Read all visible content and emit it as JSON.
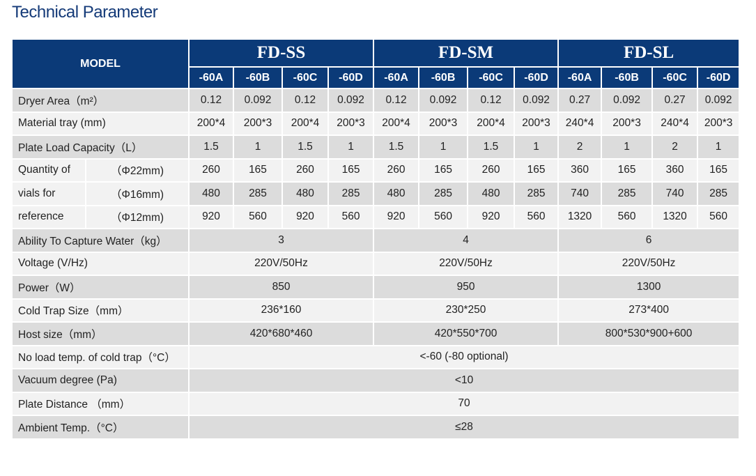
{
  "title": "Technical Parameter",
  "header": {
    "model_label": "MODEL",
    "groups": [
      "FD-SS",
      "FD-SM",
      "FD-SL"
    ],
    "variants": [
      "-60A",
      "-60B",
      "-60C",
      "-60D",
      "-60A",
      "-60B",
      "-60C",
      "-60D",
      "-60A",
      "-60B",
      "-60C",
      "-60D"
    ]
  },
  "rows": {
    "dryer_area": {
      "label": "Dryer Area（m²）",
      "values": [
        "0.12",
        "0.092",
        "0.12",
        "0.092",
        "0.12",
        "0.092",
        "0.12",
        "0.092",
        "0.27",
        "0.092",
        "0.27",
        "0.092"
      ]
    },
    "material_tray": {
      "label": "Material tray (mm)",
      "values": [
        "200*4",
        "200*3",
        "200*4",
        "200*3",
        "200*4",
        "200*3",
        "200*4",
        "200*3",
        "240*4",
        "200*3",
        "240*4",
        "200*3"
      ]
    },
    "plate_load": {
      "label": "Plate Load Capacity（L）",
      "values": [
        "1.5",
        "1",
        "1.5",
        "1",
        "1.5",
        "1",
        "1.5",
        "1",
        "2",
        "1",
        "2",
        "1"
      ]
    },
    "vials": {
      "label_lines": [
        "Quantity of",
        "vials for",
        "reference"
      ],
      "sizes": [
        {
          "label": "（Φ22mm)",
          "values": [
            "260",
            "165",
            "260",
            "165",
            "260",
            "165",
            "260",
            "165",
            "360",
            "165",
            "360",
            "165"
          ]
        },
        {
          "label": "（Φ16mm)",
          "values": [
            "480",
            "285",
            "480",
            "285",
            "480",
            "285",
            "480",
            "285",
            "740",
            "285",
            "740",
            "285"
          ]
        },
        {
          "label": "（Φ12mm)",
          "values": [
            "920",
            "560",
            "920",
            "560",
            "920",
            "560",
            "920",
            "560",
            "1320",
            "560",
            "1320",
            "560"
          ]
        }
      ]
    },
    "capture_water": {
      "label": "Ability To Capture Water（kg）",
      "values": [
        "3",
        "4",
        "6"
      ]
    },
    "voltage": {
      "label": "Voltage (V/Hz)",
      "values": [
        "220V/50Hz",
        "220V/50Hz",
        "220V/50Hz"
      ]
    },
    "power": {
      "label": "Power（W）",
      "values": [
        "850",
        "950",
        "1300"
      ]
    },
    "cold_trap_size": {
      "label": "Cold Trap Size（mm）",
      "values": [
        "236*160",
        "230*250",
        "273*400"
      ]
    },
    "host_size": {
      "label": "Host size（mm）",
      "values": [
        "420*680*460",
        "420*550*700",
        "800*530*900+600"
      ]
    },
    "no_load_temp": {
      "label": "No load temp. of cold trap（°C）",
      "value": "<-60 (-80 optional)"
    },
    "vacuum": {
      "label": "Vacuum degree (Pa)",
      "value": "<10"
    },
    "plate_distance": {
      "label": "Plate Distance （mm）",
      "value": "70"
    },
    "ambient": {
      "label": "Ambient Temp.（°C）",
      "value": "≤28"
    }
  }
}
